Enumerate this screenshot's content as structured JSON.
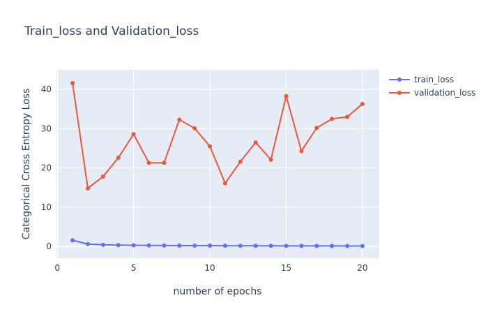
{
  "chart_data": {
    "type": "line",
    "title": "Train_loss and Validation_loss",
    "xlabel": "number of epochs",
    "ylabel": "Categorical Cross Entropy Loss",
    "xlim": [
      -0.1,
      21.1
    ],
    "ylim": [
      -3,
      45
    ],
    "xticks": [
      0,
      5,
      10,
      15,
      20
    ],
    "yticks": [
      0,
      10,
      20,
      30,
      40
    ],
    "grid": true,
    "legend_position": "top-right",
    "plot_background": "#e5ecf6",
    "x": [
      1,
      2,
      3,
      4,
      5,
      6,
      7,
      8,
      9,
      10,
      11,
      12,
      13,
      14,
      15,
      16,
      17,
      18,
      19,
      20
    ],
    "series": [
      {
        "name": "train_loss",
        "color": "#636efa",
        "values": [
          1.55,
          0.6,
          0.4,
          0.33,
          0.28,
          0.25,
          0.22,
          0.21,
          0.2,
          0.19,
          0.17,
          0.16,
          0.15,
          0.15,
          0.14,
          0.14,
          0.13,
          0.13,
          0.12,
          0.12
        ]
      },
      {
        "name": "validation_loss",
        "color": "#ef553b",
        "values": [
          41.6,
          14.8,
          17.8,
          22.6,
          28.6,
          21.3,
          21.3,
          32.3,
          30.1,
          25.5,
          16.1,
          21.6,
          26.5,
          22.1,
          38.3,
          24.3,
          30.2,
          32.5,
          33.0,
          36.3
        ]
      }
    ]
  }
}
